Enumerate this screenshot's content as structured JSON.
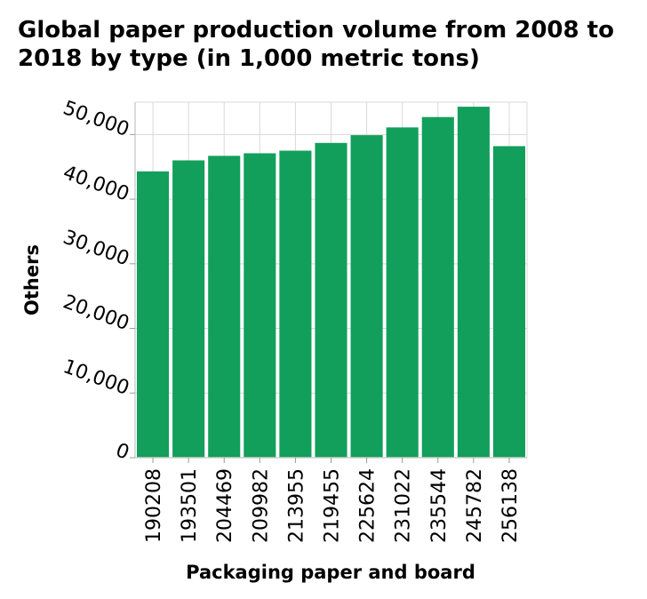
{
  "chart_data": {
    "type": "bar",
    "title": "Global paper production volume from 2008 to 2018 by type (in 1,000 metric tons)",
    "xlabel": "Packaging paper and board",
    "ylabel": "Others",
    "categories": [
      "190208",
      "193501",
      "204469",
      "209982",
      "213955",
      "219455",
      "225624",
      "231022",
      "235544",
      "245782",
      "256138"
    ],
    "values": [
      44300,
      46000,
      46700,
      47100,
      47500,
      48700,
      49900,
      51100,
      52700,
      54300,
      48200
    ],
    "ylim": [
      0,
      55000
    ],
    "yticks": [
      0,
      10000,
      20000,
      30000,
      40000,
      50000
    ],
    "ytick_labels": [
      "0",
      "10,000",
      "20,000",
      "30,000",
      "40,000",
      "50,000"
    ],
    "grid": true,
    "bar_color": "#129f5b"
  }
}
